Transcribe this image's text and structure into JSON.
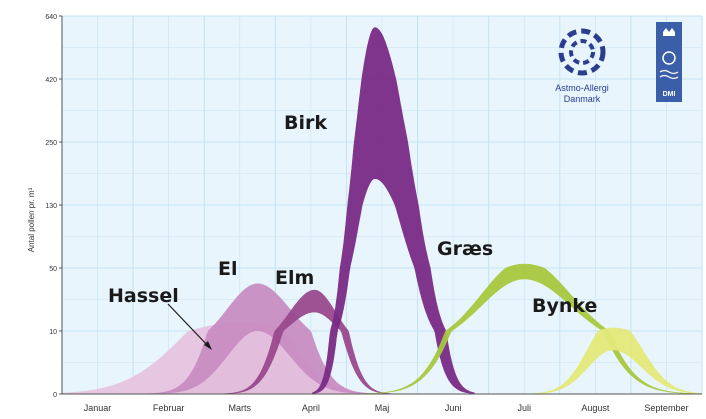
{
  "chart_data": {
    "type": "area",
    "ylabel": "Antal pollen pr. m³",
    "y_ticks": [
      "0",
      "10",
      "50",
      "130",
      "250",
      "420",
      "640"
    ],
    "x_ticks": [
      "Januar",
      "Februar",
      "Marts",
      "April",
      "Maj",
      "Juni",
      "Juli",
      "August",
      "September"
    ],
    "grid": true,
    "series": [
      {
        "name": "Hassel",
        "color": "#e6c4df",
        "peak_month": 2.6,
        "peak": 9,
        "range": [
          0,
          16
        ]
      },
      {
        "name": "El",
        "color": "#c98ec3",
        "peak_month": 2.75,
        "peak": 25,
        "range": [
          10,
          40
        ]
      },
      {
        "name": "Elm",
        "color": "#9a4a8e",
        "peak_month": 3.55,
        "peak": 29,
        "range": [
          22,
          36
        ]
      },
      {
        "name": "Birk",
        "color": "#7a2b86",
        "peak_month": 4.4,
        "peak": 420,
        "range": [
          180,
          600
        ]
      },
      {
        "name": "Græs",
        "color": "#a7c83f",
        "peak_month": 6.5,
        "peak": 50,
        "range": [
          43,
          55
        ]
      },
      {
        "name": "Bynke",
        "color": "#e4e97a",
        "peak_month": 7.75,
        "peak": 10,
        "range": [
          7,
          12
        ]
      }
    ]
  },
  "logos": {
    "astmo_line1": "Astmo-Allergi",
    "astmo_line2": "Danmark",
    "dmi_text": "DMI"
  }
}
